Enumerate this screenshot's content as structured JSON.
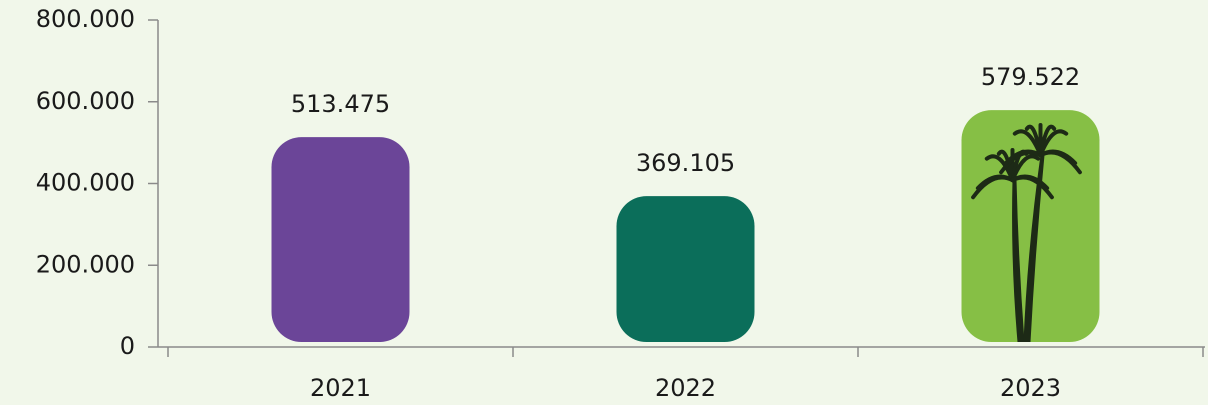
{
  "chart_data": {
    "type": "bar",
    "categories": [
      "2021",
      "2022",
      "2023"
    ],
    "values": [
      513475,
      369105,
      579522
    ],
    "value_labels": [
      "513.475",
      "369.105",
      "579.522"
    ],
    "colors": [
      "#6b4598",
      "#0b6e5a",
      "#86bf45"
    ],
    "ylim": [
      0,
      800000
    ],
    "yticks": [
      0,
      {
        "value": 200000,
        "label": "200.000"
      },
      {
        "value": 400000,
        "label": "400.000"
      },
      {
        "value": 600000,
        "label": "600.000"
      },
      {
        "value": 800000,
        "label": "800.000"
      }
    ]
  }
}
